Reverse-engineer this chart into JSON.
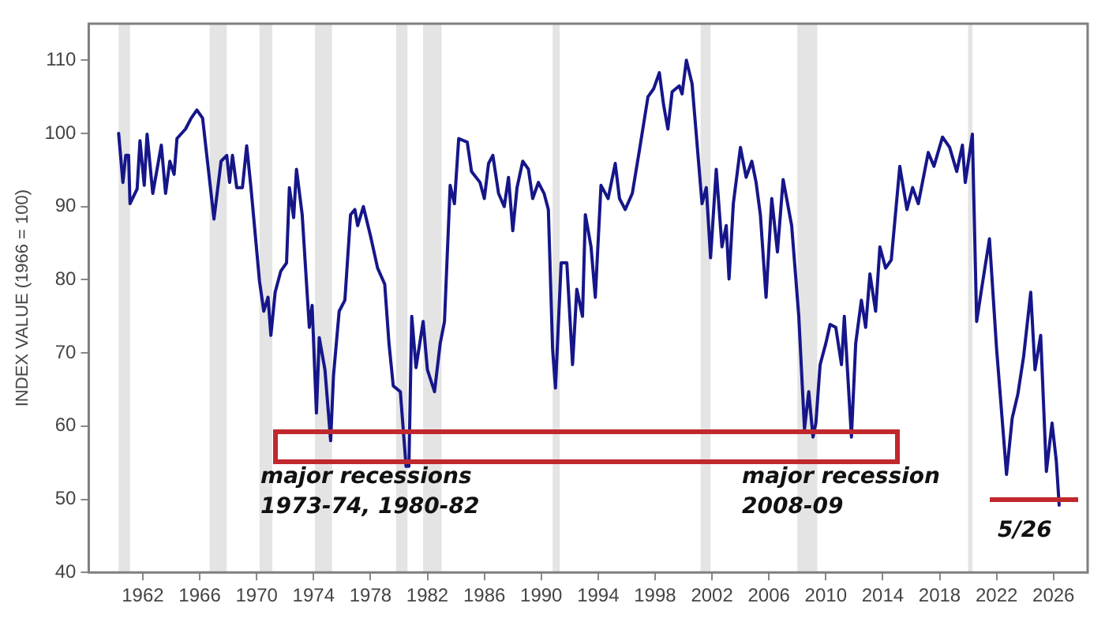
{
  "chart_data": {
    "type": "line",
    "ylabel": "INDEX VALUE (1966 = 100)",
    "xlim": [
      1958.2,
      2028.4
    ],
    "xticks": [
      1962,
      1966,
      1970,
      1974,
      1978,
      1982,
      1986,
      1990,
      1994,
      1998,
      2002,
      2006,
      2010,
      2014,
      2018,
      2022,
      2026
    ],
    "ylim": [
      40,
      115
    ],
    "yticks": [
      40,
      50,
      60,
      70,
      80,
      90,
      100,
      110
    ],
    "line_style": "solid",
    "series": [
      {
        "color": "#16168a",
        "x": [
          1960.3,
          1960.6,
          1960.8,
          1961.0,
          1961.1,
          1961.6,
          1961.8,
          1962.1,
          1962.3,
          1962.7,
          1963.3,
          1963.6,
          1963.9,
          1964.2,
          1964.4,
          1965.0,
          1965.4,
          1965.8,
          1966.2,
          1967.0,
          1967.5,
          1967.9,
          1968.1,
          1968.3,
          1968.6,
          1969.0,
          1969.3,
          1969.6,
          1970.2,
          1970.5,
          1970.8,
          1971.0,
          1971.3,
          1971.7,
          1972.1,
          1972.3,
          1972.6,
          1972.8,
          1973.2,
          1973.7,
          1973.9,
          1974.2,
          1974.4,
          1974.8,
          1975.2,
          1975.4,
          1975.8,
          1976.2,
          1976.6,
          1976.9,
          1977.1,
          1977.5,
          1978.0,
          1978.5,
          1979.0,
          1979.3,
          1979.6,
          1980.1,
          1980.5,
          1980.7,
          1980.9,
          1981.2,
          1981.7,
          1982.0,
          1982.5,
          1982.9,
          1983.2,
          1983.6,
          1983.9,
          1984.2,
          1984.8,
          1985.1,
          1985.7,
          1986.0,
          1986.3,
          1986.6,
          1987.0,
          1987.4,
          1987.7,
          1988.0,
          1988.3,
          1988.7,
          1989.1,
          1989.4,
          1989.8,
          1990.2,
          1990.5,
          1990.8,
          1991.0,
          1991.4,
          1991.8,
          1992.2,
          1992.5,
          1992.9,
          1993.1,
          1993.5,
          1993.8,
          1994.2,
          1994.7,
          1995.2,
          1995.5,
          1995.9,
          1996.4,
          1996.9,
          1997.5,
          1997.9,
          1998.3,
          1998.6,
          1998.9,
          1999.2,
          1999.7,
          1999.9,
          2000.2,
          2000.6,
          2001.3,
          2001.6,
          2001.9,
          2002.3,
          2002.7,
          2003.0,
          2003.2,
          2003.5,
          2004.0,
          2004.4,
          2004.8,
          2005.1,
          2005.4,
          2005.8,
          2006.2,
          2006.6,
          2007.0,
          2007.6,
          2008.1,
          2008.5,
          2008.8,
          2009.1,
          2009.3,
          2009.6,
          2010.0,
          2010.3,
          2010.7,
          2011.1,
          2011.3,
          2011.8,
          2012.1,
          2012.5,
          2012.8,
          2013.1,
          2013.5,
          2013.8,
          2014.2,
          2014.6,
          2015.2,
          2015.7,
          2016.1,
          2016.5,
          2017.2,
          2017.6,
          2018.2,
          2018.7,
          2019.2,
          2019.6,
          2019.8,
          2020.3,
          2020.6,
          2021.0,
          2021.5,
          2022.0,
          2022.7,
          2023.1,
          2023.5,
          2023.9,
          2024.4,
          2024.7,
          2025.1,
          2025.5,
          2025.9,
          2026.2,
          2026.4
        ],
        "values": [
          100,
          93.3,
          97,
          97,
          90.4,
          92.4,
          99,
          92.9,
          99.9,
          91.8,
          98.4,
          91.8,
          96.2,
          94.4,
          99.3,
          100.6,
          102.1,
          103.2,
          102.1,
          88.3,
          96.2,
          97,
          93.3,
          97,
          92.6,
          92.6,
          98.3,
          92.6,
          79.8,
          75.7,
          77.6,
          72.4,
          78.3,
          81.2,
          82.3,
          92.6,
          88.5,
          95.1,
          88.9,
          73.5,
          76.5,
          61.8,
          72.1,
          67.7,
          58,
          66.9,
          75.7,
          77.2,
          88.9,
          89.6,
          87.4,
          90,
          86,
          81.6,
          79.4,
          71.3,
          65.5,
          64.7,
          54.5,
          54.5,
          75,
          68,
          74.3,
          67.7,
          64.7,
          71.3,
          74.3,
          92.9,
          90.4,
          99.3,
          98.8,
          94.8,
          93.3,
          91.1,
          95.9,
          97,
          91.8,
          90,
          94,
          86.7,
          92.6,
          96.2,
          95.1,
          91.1,
          93.3,
          91.8,
          89.6,
          70.5,
          65.2,
          82.3,
          82.3,
          68.4,
          78.7,
          75,
          88.9,
          84.5,
          77.6,
          92.9,
          91.1,
          95.9,
          91.1,
          89.6,
          91.8,
          97.7,
          105,
          106.1,
          108.3,
          103.9,
          100.6,
          105.7,
          106.5,
          105.4,
          110,
          106.8,
          90.4,
          92.6,
          83,
          95.1,
          84.5,
          87.4,
          80.1,
          90.4,
          98.1,
          94,
          96.2,
          93.3,
          88.9,
          77.6,
          91.1,
          83.8,
          93.7,
          87.4,
          75,
          59.6,
          64.7,
          58.5,
          60.4,
          68.4,
          71.3,
          73.9,
          73.5,
          68.4,
          75,
          58.5,
          71.3,
          77.2,
          73.5,
          80.8,
          75.7,
          84.5,
          81.6,
          82.7,
          95.5,
          89.6,
          92.6,
          90.4,
          97.4,
          95.5,
          99.5,
          98.1,
          94.8,
          98.4,
          93.3,
          99.9,
          74.3,
          79.4,
          85.6,
          70.6,
          53.4,
          61.1,
          64.4,
          69.5,
          78.3,
          67.7,
          72.4,
          53.8,
          60.4,
          55.2,
          49.2
        ]
      }
    ],
    "bands": [
      {
        "axis": "x",
        "from": 1960.3,
        "to": 1961.1,
        "color": "#e4e4e4"
      },
      {
        "axis": "x",
        "from": 1966.7,
        "to": 1967.9,
        "color": "#e4e4e4"
      },
      {
        "axis": "x",
        "from": 1970.2,
        "to": 1971.1,
        "color": "#e4e4e4"
      },
      {
        "axis": "x",
        "from": 1974.1,
        "to": 1975.3,
        "color": "#e4e4e4"
      },
      {
        "axis": "x",
        "from": 1979.8,
        "to": 1980.6,
        "color": "#e4e4e4"
      },
      {
        "axis": "x",
        "from": 1981.7,
        "to": 1983.0,
        "color": "#e4e4e4"
      },
      {
        "axis": "x",
        "from": 1990.8,
        "to": 1991.3,
        "color": "#e4e4e4"
      },
      {
        "axis": "x",
        "from": 2001.2,
        "to": 2001.9,
        "color": "#e4e4e4"
      },
      {
        "axis": "x",
        "from": 2008.0,
        "to": 2009.4,
        "color": "#e4e4e4"
      },
      {
        "axis": "x",
        "from": 2020.0,
        "to": 2020.3,
        "color": "#e4e4e4"
      }
    ],
    "annotations": [
      "major recessions\n1973-74, 1980-82",
      "major recession\n2008-09",
      "5/26"
    ]
  }
}
